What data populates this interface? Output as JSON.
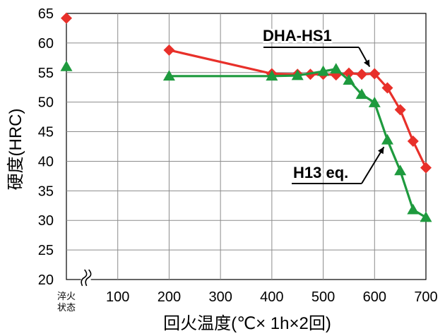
{
  "chart_data": {
    "type": "line",
    "ylabel": "硬度(HRC)",
    "xlabel": "回火温度(℃× 1h×2回)",
    "xlim": [
      0,
      700
    ],
    "ylim": [
      20,
      65
    ],
    "x_ticks": [
      "100",
      "200",
      "300",
      "400",
      "500",
      "600",
      "700"
    ],
    "x_tick_values": [
      100,
      200,
      300,
      400,
      500,
      600,
      700
    ],
    "y_ticks": [
      "20",
      "25",
      "30",
      "35",
      "40",
      "45",
      "50",
      "55",
      "60",
      "65"
    ],
    "y_tick_values": [
      20,
      25,
      30,
      35,
      40,
      45,
      50,
      55,
      60,
      65
    ],
    "quench_label_line1": "淬火",
    "quench_label_line2": "状态",
    "axis_break_symbol": "≈",
    "grid": true,
    "series": [
      {
        "name": "DHA-HS1",
        "color": "#e8302a",
        "marker": "diamond",
        "quenched_value": 64.2,
        "x": [
          200,
          400,
          450,
          475,
          500,
          525,
          550,
          575,
          600,
          625,
          650,
          675,
          700
        ],
        "values": [
          58.8,
          54.8,
          54.7,
          54.7,
          54.7,
          54.6,
          54.9,
          54.7,
          54.8,
          52.4,
          48.7,
          43.4,
          38.9
        ]
      },
      {
        "name": "H13 eq.",
        "color": "#1e9a3e",
        "marker": "triangle",
        "quenched_value": 56.0,
        "x": [
          200,
          400,
          450,
          500,
          525,
          550,
          575,
          600,
          625,
          650,
          675,
          700
        ],
        "values": [
          54.4,
          54.4,
          54.5,
          55.2,
          55.6,
          53.7,
          51.3,
          49.9,
          43.6,
          38.4,
          31.8,
          30.5
        ]
      }
    ],
    "annotations": [
      {
        "text": "DHA-HS1",
        "target_series": "DHA-HS1"
      },
      {
        "text": "H13 eq.",
        "target_series": "H13 eq."
      }
    ]
  }
}
